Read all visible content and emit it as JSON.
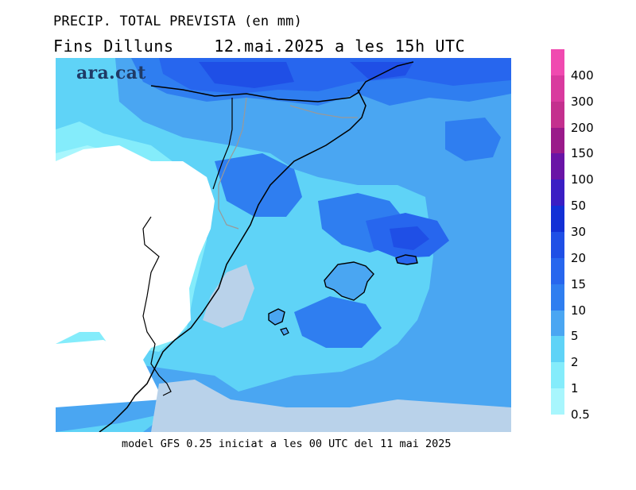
{
  "header": {
    "line1": "PRECIP. TOTAL PREVISTA (en mm)",
    "line2": "Fins Dilluns    12.mai.2025 a les 15h UTC"
  },
  "brand": "ara.cat",
  "footer": "model GFS 0.25 iniciat a les 00 UTC del 11 mai 2025",
  "legend": [
    {
      "label": "400",
      "color": "#f04ab0"
    },
    {
      "label": "300",
      "color": "#d93a9e"
    },
    {
      "label": "200",
      "color": "#c4308e"
    },
    {
      "label": "150",
      "color": "#9a1a8a"
    },
    {
      "label": "100",
      "color": "#6a14a6"
    },
    {
      "label": "50",
      "color": "#3a1ec4"
    },
    {
      "label": "30",
      "color": "#1230d6"
    },
    {
      "label": "20",
      "color": "#1f4fe6"
    },
    {
      "label": "15",
      "color": "#2766ee"
    },
    {
      "label": "10",
      "color": "#2f7ef0"
    },
    {
      "label": "5",
      "color": "#4aa6f2"
    },
    {
      "label": "2",
      "color": "#5fd3f7"
    },
    {
      "label": "1",
      "color": "#84ecfb"
    },
    {
      "label": "0.5",
      "color": "#a8f6fd"
    }
  ]
}
